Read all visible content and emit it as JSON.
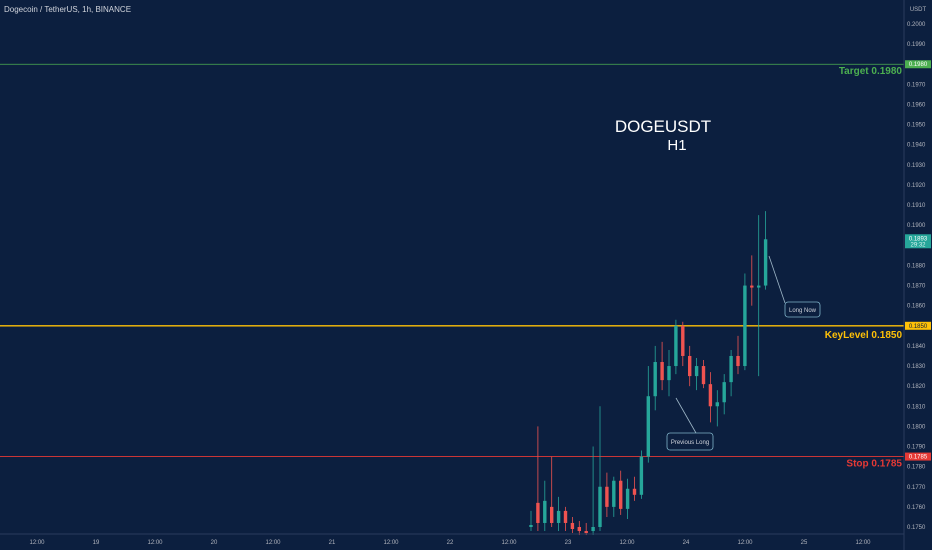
{
  "header": {
    "symbol_line": "Dogecoin / TetherUS, 1h, BINANCE"
  },
  "price_axis": {
    "currency": "USDT"
  },
  "annotations": {
    "title_line1": "DOGEUSDT",
    "title_line2": "H1",
    "long_now": "Long Now",
    "previous_long": "Previous Long"
  },
  "levels": {
    "target": {
      "label": "Target 0.1980",
      "value": 0.198,
      "tag": "0.1980",
      "color": "#4caf50"
    },
    "key": {
      "label": "KeyLevel 0.1850",
      "value": 0.185,
      "tag": "0.1850",
      "color": "#ffc107"
    },
    "stop": {
      "label": "Stop 0.1785",
      "value": 0.1785,
      "tag": "0.1785",
      "color": "#e53935"
    }
  },
  "current_price": {
    "value": 0.1893,
    "tag": "0.1893",
    "sub_tag": "29:32",
    "color": "#26a69a"
  },
  "colors": {
    "background": "#0c1f3f",
    "up": "#26a69a",
    "down": "#ef5350",
    "axis_text": "#b2b5be"
  },
  "chart_data": {
    "type": "candlestick",
    "title": "DOGEUSDT H1",
    "ylim": [
      0.1745,
      0.2015
    ],
    "y_ticks": [
      0.2,
      0.199,
      0.198,
      0.197,
      0.196,
      0.195,
      0.194,
      0.193,
      0.192,
      0.191,
      0.19,
      0.189,
      0.188,
      0.187,
      0.186,
      0.185,
      0.184,
      0.183,
      0.182,
      0.181,
      0.18,
      0.179,
      0.178,
      0.177,
      0.176,
      0.175
    ],
    "y_tick_labels": [
      "0.2000",
      "0.1990",
      "0.1980",
      "0.1970",
      "0.1960",
      "0.1950",
      "0.1940",
      "0.1930",
      "0.1920",
      "0.1910",
      "0.1900",
      "0.1890",
      "0.1880",
      "0.1870",
      "0.1860",
      "0.1850",
      "0.1840",
      "0.1830",
      "0.1820",
      "0.1810",
      "0.1800",
      "0.1790",
      "0.1780",
      "0.1770",
      "0.1760",
      "0.1750"
    ],
    "x_ticks": [
      "12:00",
      "19",
      "12:00",
      "20",
      "12:00",
      "21",
      "12:00",
      "22",
      "12:00",
      "23",
      "12:00",
      "24",
      "12:00",
      "25",
      "12:00"
    ],
    "candles": [
      {
        "o": 0.175,
        "h": 0.1758,
        "l": 0.1748,
        "c": 0.1751
      },
      {
        "o": 0.1762,
        "h": 0.18,
        "l": 0.1748,
        "c": 0.1752
      },
      {
        "o": 0.1752,
        "h": 0.1773,
        "l": 0.1748,
        "c": 0.1763
      },
      {
        "o": 0.176,
        "h": 0.1785,
        "l": 0.175,
        "c": 0.1752
      },
      {
        "o": 0.1752,
        "h": 0.1765,
        "l": 0.1748,
        "c": 0.1758
      },
      {
        "o": 0.1758,
        "h": 0.176,
        "l": 0.1748,
        "c": 0.1752
      },
      {
        "o": 0.1752,
        "h": 0.1755,
        "l": 0.1747,
        "c": 0.1749
      },
      {
        "o": 0.175,
        "h": 0.1753,
        "l": 0.1746,
        "c": 0.1748
      },
      {
        "o": 0.1748,
        "h": 0.1752,
        "l": 0.1746,
        "c": 0.1747
      },
      {
        "o": 0.1748,
        "h": 0.179,
        "l": 0.1746,
        "c": 0.175
      },
      {
        "o": 0.175,
        "h": 0.181,
        "l": 0.1748,
        "c": 0.177
      },
      {
        "o": 0.177,
        "h": 0.1777,
        "l": 0.1755,
        "c": 0.176
      },
      {
        "o": 0.176,
        "h": 0.1775,
        "l": 0.1755,
        "c": 0.1773
      },
      {
        "o": 0.1773,
        "h": 0.1778,
        "l": 0.1756,
        "c": 0.1759
      },
      {
        "o": 0.1759,
        "h": 0.1774,
        "l": 0.1754,
        "c": 0.1769
      },
      {
        "o": 0.1769,
        "h": 0.1775,
        "l": 0.1763,
        "c": 0.1766
      },
      {
        "o": 0.1766,
        "h": 0.1788,
        "l": 0.1764,
        "c": 0.1785
      },
      {
        "o": 0.1785,
        "h": 0.183,
        "l": 0.1782,
        "c": 0.1815
      },
      {
        "o": 0.1815,
        "h": 0.184,
        "l": 0.1808,
        "c": 0.1832
      },
      {
        "o": 0.1832,
        "h": 0.1842,
        "l": 0.1818,
        "c": 0.1823
      },
      {
        "o": 0.1823,
        "h": 0.1838,
        "l": 0.1815,
        "c": 0.183
      },
      {
        "o": 0.183,
        "h": 0.1853,
        "l": 0.1826,
        "c": 0.185
      },
      {
        "o": 0.185,
        "h": 0.1852,
        "l": 0.183,
        "c": 0.1835
      },
      {
        "o": 0.1835,
        "h": 0.184,
        "l": 0.182,
        "c": 0.1825
      },
      {
        "o": 0.1825,
        "h": 0.1834,
        "l": 0.1818,
        "c": 0.183
      },
      {
        "o": 0.183,
        "h": 0.1833,
        "l": 0.1819,
        "c": 0.1821
      },
      {
        "o": 0.1821,
        "h": 0.1827,
        "l": 0.1802,
        "c": 0.181
      },
      {
        "o": 0.181,
        "h": 0.1818,
        "l": 0.18,
        "c": 0.1812
      },
      {
        "o": 0.1812,
        "h": 0.1826,
        "l": 0.1806,
        "c": 0.1822
      },
      {
        "o": 0.1822,
        "h": 0.1838,
        "l": 0.1815,
        "c": 0.1835
      },
      {
        "o": 0.1835,
        "h": 0.1845,
        "l": 0.1826,
        "c": 0.183
      },
      {
        "o": 0.183,
        "h": 0.1876,
        "l": 0.1828,
        "c": 0.187
      },
      {
        "o": 0.187,
        "h": 0.1885,
        "l": 0.186,
        "c": 0.1869
      },
      {
        "o": 0.1869,
        "h": 0.1905,
        "l": 0.1825,
        "c": 0.187
      },
      {
        "o": 0.187,
        "h": 0.1907,
        "l": 0.1868,
        "c": 0.1893
      }
    ]
  }
}
